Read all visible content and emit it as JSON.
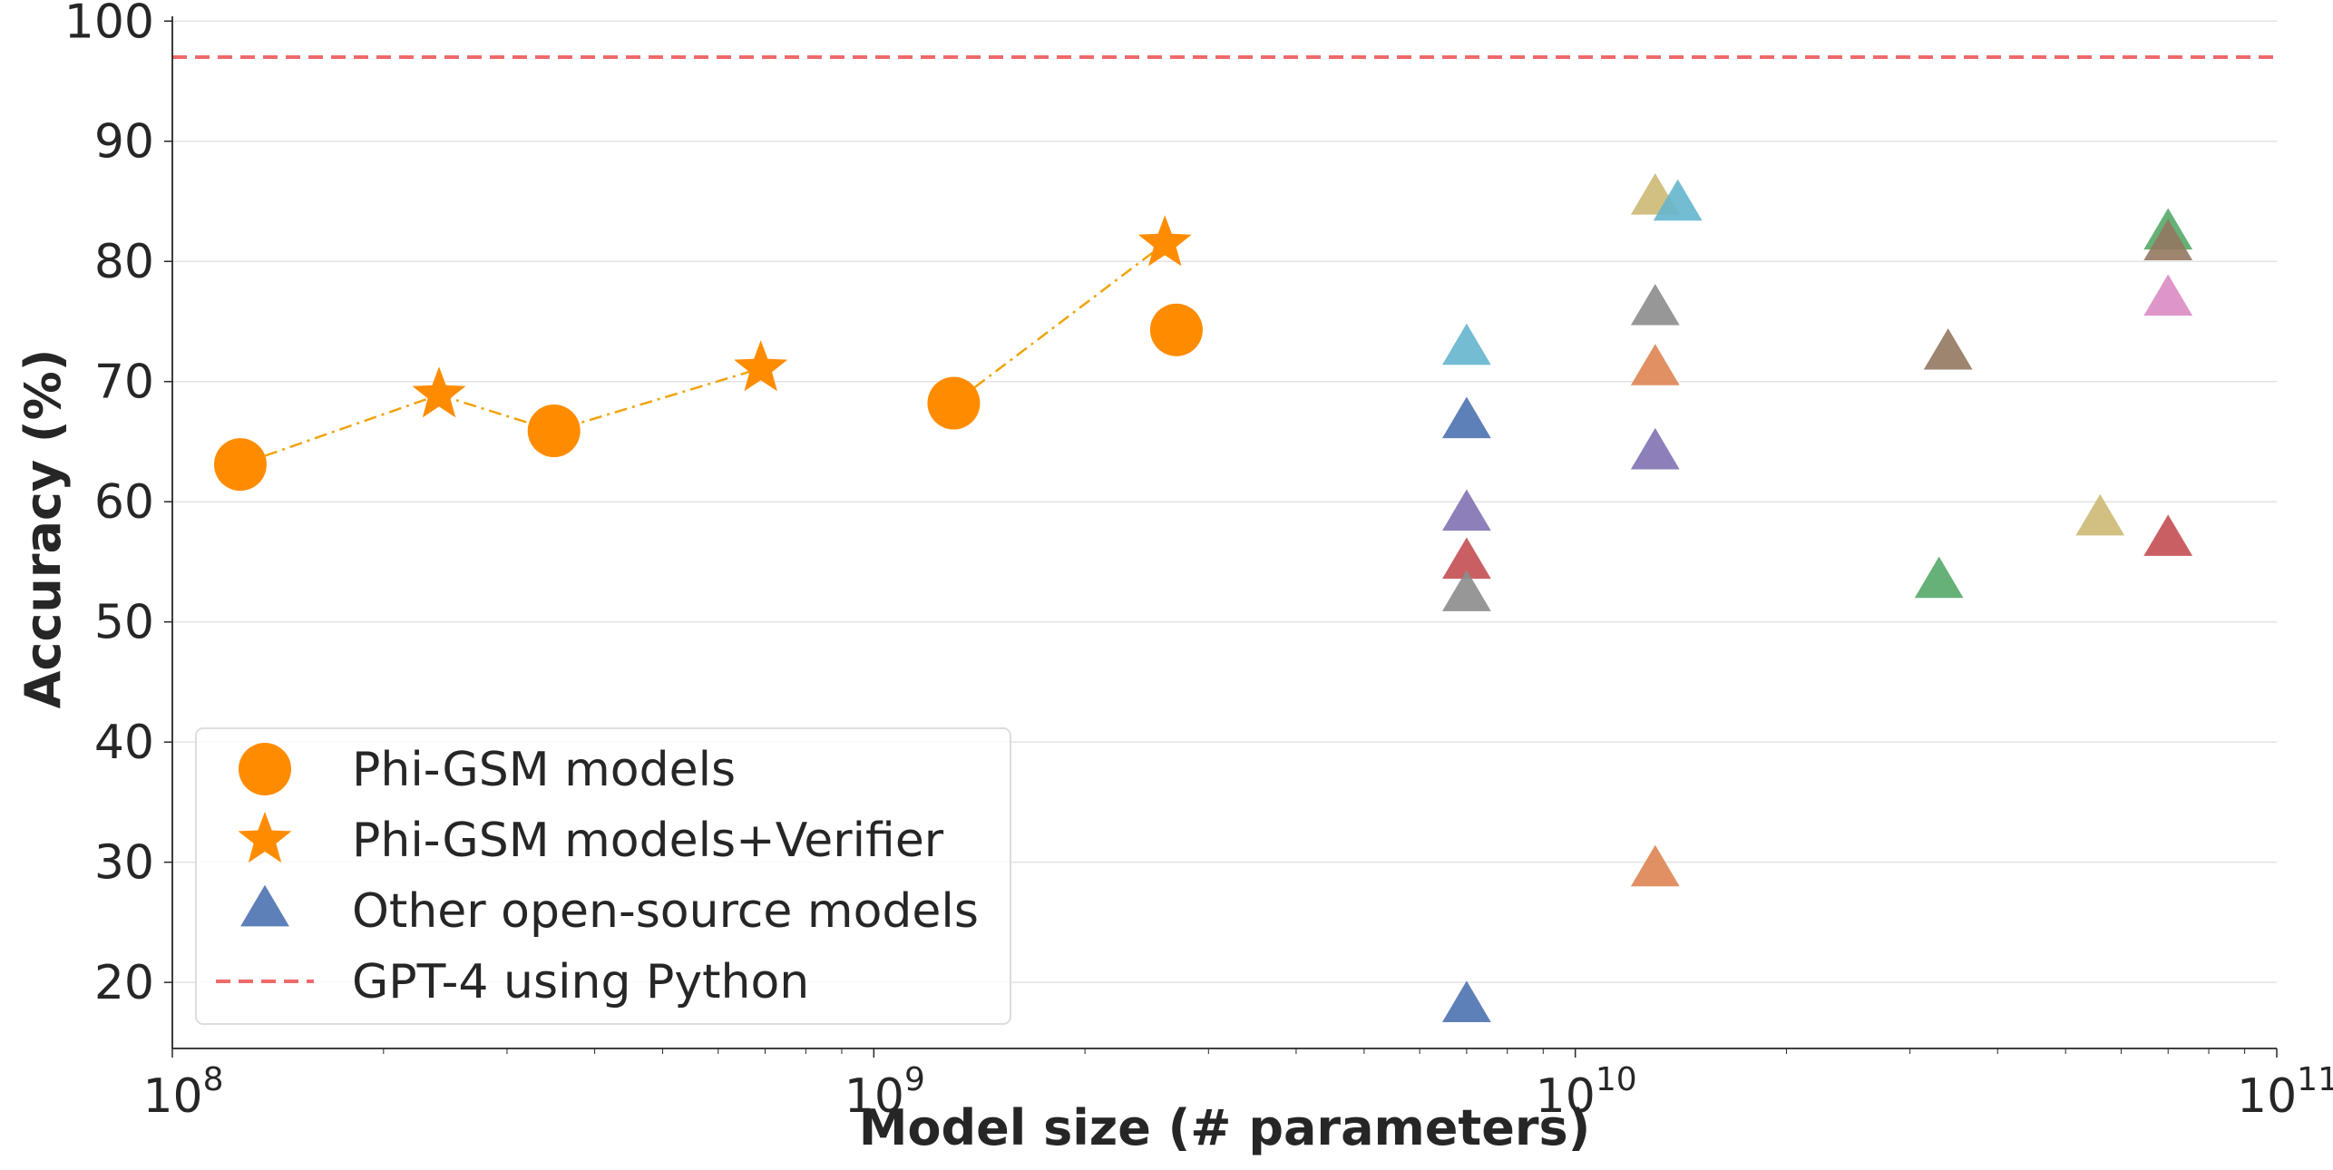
{
  "chart_data": {
    "type": "scatter",
    "title": "",
    "xlabel": "Model size (# parameters)",
    "ylabel": "Accuracy (%)",
    "xscale": "log",
    "xlim": [
      100000000,
      100000000000
    ],
    "ylim": [
      14.5,
      101
    ],
    "grid": "horizontal",
    "legend_position": "lower-left",
    "x_ticks": [
      {
        "value": 100000000,
        "base": "10",
        "exp": "8"
      },
      {
        "value": 1000000000,
        "base": "10",
        "exp": "9"
      },
      {
        "value": 10000000000,
        "base": "10",
        "exp": "10"
      },
      {
        "value": 100000000000,
        "base": "10",
        "exp": "11"
      }
    ],
    "y_ticks": [
      20,
      30,
      40,
      50,
      60,
      70,
      80,
      90,
      100
    ],
    "series": [
      {
        "name": "Phi-GSM models",
        "marker": "circle",
        "color": "#ff8c00",
        "points": [
          {
            "x": 125000000,
            "y": 63.1
          },
          {
            "x": 350000000,
            "y": 65.9
          },
          {
            "x": 1300000000,
            "y": 68.2
          },
          {
            "x": 2700000000,
            "y": 74.3
          }
        ]
      },
      {
        "name": "Phi-GSM models+Verifier",
        "marker": "star",
        "color": "#ff8c00",
        "points": [
          {
            "x": 240000000,
            "y": 68.9
          },
          {
            "x": 690000000,
            "y": 71.1
          },
          {
            "x": 2600000000,
            "y": 81.5
          }
        ]
      },
      {
        "name": "Other open-source models",
        "marker": "triangle",
        "color": "#4c72b0",
        "points": [
          {
            "x": 7000000000,
            "y": 72.7,
            "color": "#64b5cd"
          },
          {
            "x": 7000000000,
            "y": 66.6,
            "color": "#4c72b0"
          },
          {
            "x": 7000000000,
            "y": 58.9,
            "color": "#8172b3"
          },
          {
            "x": 7000000000,
            "y": 54.9,
            "color": "#c44e52"
          },
          {
            "x": 7000000000,
            "y": 52.2,
            "color": "#8c8c8c"
          },
          {
            "x": 7000000000,
            "y": 18.0,
            "color": "#4c72b0"
          },
          {
            "x": 13000000000,
            "y": 85.2,
            "color": "#ccb974"
          },
          {
            "x": 14000000000,
            "y": 84.7,
            "color": "#64b5cd"
          },
          {
            "x": 13000000000,
            "y": 76.0,
            "color": "#8c8c8c"
          },
          {
            "x": 13000000000,
            "y": 71.0,
            "color": "#dd8452"
          },
          {
            "x": 13000000000,
            "y": 64.0,
            "color": "#8172b3"
          },
          {
            "x": 13000000000,
            "y": 29.3,
            "color": "#dd8452"
          },
          {
            "x": 34000000000,
            "y": 72.3,
            "color": "#937860"
          },
          {
            "x": 33000000000,
            "y": 53.3,
            "color": "#55a868"
          },
          {
            "x": 56000000000,
            "y": 58.5,
            "color": "#ccb974"
          },
          {
            "x": 70000000000,
            "y": 82.3,
            "color": "#55a868"
          },
          {
            "x": 70000000000,
            "y": 81.4,
            "color": "#937860"
          },
          {
            "x": 70000000000,
            "y": 76.8,
            "color": "#da8bc3"
          },
          {
            "x": 70000000000,
            "y": 56.8,
            "color": "#c44e52"
          }
        ]
      }
    ],
    "connectors": [
      {
        "style": "dashdot",
        "color": "#f0a30a",
        "points": [
          [
            125000000,
            63.1
          ],
          [
            240000000,
            68.9
          ],
          [
            350000000,
            65.9
          ],
          [
            690000000,
            71.1
          ]
        ]
      },
      {
        "style": "dashdot",
        "color": "#f0a30a",
        "points": [
          [
            1300000000,
            68.2
          ],
          [
            2600000000,
            81.5
          ]
        ]
      }
    ],
    "reference_lines": [
      {
        "name": "GPT-4 using Python",
        "y": 97.0,
        "color": "#ef6a6a",
        "style": "dashed"
      }
    ],
    "legend": [
      {
        "label": "Phi-GSM models",
        "marker": "circle",
        "color": "#ff8c00"
      },
      {
        "label": "Phi-GSM models+Verifier",
        "marker": "star",
        "color": "#ff8c00"
      },
      {
        "label": "Other open-source models",
        "marker": "triangle",
        "color": "#4c72b0"
      },
      {
        "label": "GPT-4 using Python",
        "marker": "dashed-line",
        "color": "#ef6a6a"
      }
    ]
  }
}
